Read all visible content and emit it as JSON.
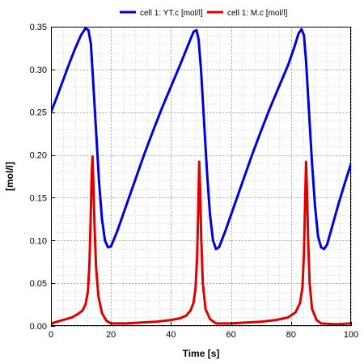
{
  "chart_data": {
    "type": "line",
    "title": "",
    "xlabel": "Time [s]",
    "ylabel": "[mol/l]",
    "xlim": [
      0,
      100
    ],
    "ylim": [
      0,
      0.35
    ],
    "x_ticks": [
      0,
      20,
      40,
      60,
      80,
      100
    ],
    "x_tick_labels": [
      "0",
      "20",
      "40",
      "60",
      "80",
      "100"
    ],
    "y_ticks": [
      0,
      0.05,
      0.1,
      0.15,
      0.2,
      0.25,
      0.3,
      0.35
    ],
    "y_tick_labels": [
      "0.00",
      "0.05",
      "0.10",
      "0.15",
      "0.20",
      "0.25",
      "0.30",
      "0.35"
    ],
    "grid": true,
    "legend_position": "top-center",
    "series": [
      {
        "name": "cell 1: YT.c [mol/l]",
        "color": "#0000dd",
        "points": [
          [
            0,
            0.25
          ],
          [
            2,
            0.268
          ],
          [
            4,
            0.287
          ],
          [
            6,
            0.306
          ],
          [
            8,
            0.324
          ],
          [
            10,
            0.34
          ],
          [
            11.5,
            0.348
          ],
          [
            12.5,
            0.346
          ],
          [
            13.3,
            0.33
          ],
          [
            14,
            0.29
          ],
          [
            15,
            0.23
          ],
          [
            16,
            0.17
          ],
          [
            17,
            0.125
          ],
          [
            18,
            0.1
          ],
          [
            19,
            0.092
          ],
          [
            20,
            0.093
          ],
          [
            22,
            0.11
          ],
          [
            25,
            0.14
          ],
          [
            28,
            0.17
          ],
          [
            31,
            0.2
          ],
          [
            34,
            0.228
          ],
          [
            37,
            0.255
          ],
          [
            40,
            0.28
          ],
          [
            43,
            0.305
          ],
          [
            46,
            0.331
          ],
          [
            47.5,
            0.344
          ],
          [
            48.5,
            0.346
          ],
          [
            49.2,
            0.335
          ],
          [
            50,
            0.3
          ],
          [
            51,
            0.24
          ],
          [
            52,
            0.18
          ],
          [
            53,
            0.13
          ],
          [
            54,
            0.1
          ],
          [
            55,
            0.09
          ],
          [
            56,
            0.092
          ],
          [
            58,
            0.11
          ],
          [
            61,
            0.14
          ],
          [
            64,
            0.17
          ],
          [
            67,
            0.2
          ],
          [
            70,
            0.228
          ],
          [
            73,
            0.255
          ],
          [
            76,
            0.28
          ],
          [
            79,
            0.305
          ],
          [
            81,
            0.325
          ],
          [
            82.5,
            0.342
          ],
          [
            83.5,
            0.347
          ],
          [
            84.3,
            0.34
          ],
          [
            85,
            0.31
          ],
          [
            86,
            0.25
          ],
          [
            87,
            0.19
          ],
          [
            88,
            0.14
          ],
          [
            89,
            0.105
          ],
          [
            90,
            0.092
          ],
          [
            91,
            0.09
          ],
          [
            92,
            0.095
          ],
          [
            94,
            0.12
          ],
          [
            96,
            0.145
          ],
          [
            98,
            0.168
          ],
          [
            100,
            0.19
          ]
        ]
      },
      {
        "name": "cell 1: M.c [mol/l]",
        "color": "#dd0000",
        "points": [
          [
            0,
            0.002
          ],
          [
            1,
            0.004
          ],
          [
            3,
            0.006
          ],
          [
            5,
            0.008
          ],
          [
            7,
            0.01
          ],
          [
            9,
            0.014
          ],
          [
            10.5,
            0.018
          ],
          [
            11.5,
            0.025
          ],
          [
            12.3,
            0.04
          ],
          [
            12.8,
            0.07
          ],
          [
            13.2,
            0.12
          ],
          [
            13.6,
            0.18
          ],
          [
            13.85,
            0.198
          ],
          [
            14.1,
            0.17
          ],
          [
            14.5,
            0.12
          ],
          [
            15,
            0.07
          ],
          [
            15.8,
            0.035
          ],
          [
            17,
            0.015
          ],
          [
            18.5,
            0.006
          ],
          [
            20,
            0.003
          ],
          [
            25,
            0.003
          ],
          [
            30,
            0.004
          ],
          [
            35,
            0.005
          ],
          [
            40,
            0.007
          ],
          [
            43,
            0.009
          ],
          [
            45,
            0.012
          ],
          [
            46.5,
            0.018
          ],
          [
            47.5,
            0.027
          ],
          [
            48.2,
            0.045
          ],
          [
            48.7,
            0.08
          ],
          [
            49.1,
            0.14
          ],
          [
            49.4,
            0.192
          ],
          [
            49.7,
            0.16
          ],
          [
            50.1,
            0.1
          ],
          [
            50.6,
            0.05
          ],
          [
            51.5,
            0.02
          ],
          [
            53,
            0.008
          ],
          [
            55,
            0.003
          ],
          [
            60,
            0.003
          ],
          [
            65,
            0.004
          ],
          [
            70,
            0.005
          ],
          [
            75,
            0.007
          ],
          [
            79,
            0.01
          ],
          [
            81.5,
            0.016
          ],
          [
            83,
            0.027
          ],
          [
            83.8,
            0.045
          ],
          [
            84.3,
            0.085
          ],
          [
            84.7,
            0.145
          ],
          [
            85,
            0.192
          ],
          [
            85.3,
            0.16
          ],
          [
            85.7,
            0.1
          ],
          [
            86.2,
            0.05
          ],
          [
            87,
            0.02
          ],
          [
            88.5,
            0.007
          ],
          [
            90,
            0.003
          ],
          [
            95,
            0.002
          ],
          [
            100,
            0.003
          ]
        ]
      }
    ]
  }
}
